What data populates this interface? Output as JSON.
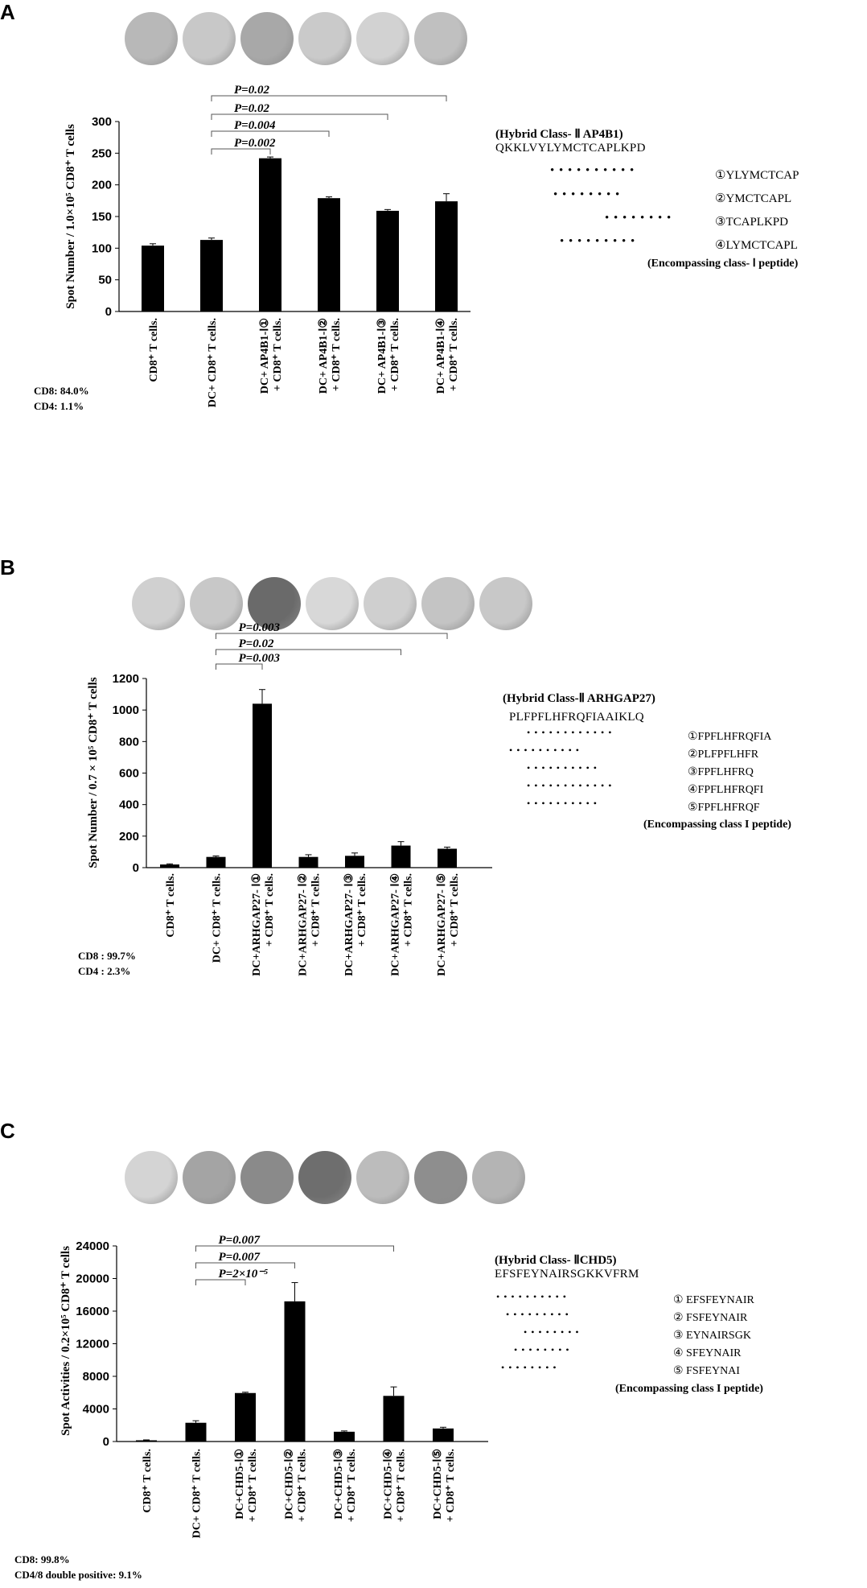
{
  "panels": [
    {
      "id": "a",
      "letter": "A",
      "stats": [
        "CD8: 84.0%",
        "CD4: 1.1%"
      ],
      "peptide": {
        "title": "(Hybrid Class- Ⅱ AP4B1)",
        "sequence": "QKKLVYLYMCTCAPLKPD",
        "dots": [
          "• • • • • • • • • •",
          "• • • • • • • •",
          "• • • • • • • •",
          "• • • • • • • • •"
        ],
        "fragments": [
          "①YLYMCTCAP",
          "②YMCTCAPL",
          "③TCAPLKPD",
          "④LYMCTCAPL"
        ],
        "caption": "(Encompassing class- Ⅰ peptide)"
      },
      "well_shades": [
        "#b8b8b8",
        "#c8c8c8",
        "#a8a8a8",
        "#cacaca",
        "#d2d2d2",
        "#c0c0c0"
      ],
      "chart_data": {
        "type": "bar",
        "ylabel": "Spot Number / 1.0×10⁵ CD8⁺ T cells",
        "ylim": [
          0,
          300
        ],
        "yticks": [
          0,
          50,
          100,
          150,
          200,
          250,
          300
        ],
        "categories": [
          [
            "CD8⁺ T cells."
          ],
          [
            "DC+ CD8⁺ T cells."
          ],
          [
            "DC+ AP4B1-Ⅰ①",
            "+ CD8⁺ T cells."
          ],
          [
            "DC+ AP4B1-Ⅰ②",
            "+ CD8⁺ T cells."
          ],
          [
            "DC+ AP4B1-Ⅰ③",
            "+ CD8⁺ T cells."
          ],
          [
            "DC+ AP4B1-Ⅰ④",
            "+ CD8⁺ T cells."
          ]
        ],
        "values": [
          104,
          113,
          242,
          179,
          159,
          174
        ],
        "errors": [
          3,
          3,
          2,
          2,
          2,
          12
        ],
        "significance": [
          {
            "label": "P=0.002",
            "from": 1,
            "to": 2
          },
          {
            "label": "P=0.004",
            "from": 1,
            "to": 3
          },
          {
            "label": "P=0.02",
            "from": 1,
            "to": 4
          },
          {
            "label": "P=0.02",
            "from": 1,
            "to": 5
          }
        ]
      }
    },
    {
      "id": "b",
      "letter": "B",
      "stats": [
        "CD8 : 99.7%",
        "CD4 : 2.3%"
      ],
      "peptide": {
        "title": "(Hybrid Class-Ⅱ ARHGAP27)",
        "sequence": "PLFPFLHFRQFIAAIKLQ",
        "dots": [
          "• • • • • • • • • • • •",
          "• • • • • • • • • •",
          "• • • • • • • • • •",
          "• • • • • • • • • • • •",
          "• • • • • • • • • •"
        ],
        "fragments": [
          "①FPFLHFRQFIA",
          "②PLFPFLHFR",
          "③FPFLHFRQ",
          "④FPFLHFRQFI",
          "⑤FPFLHFRQF"
        ],
        "caption": "(Encompassing class I peptide)"
      },
      "well_shades": [
        "#d0d0d0",
        "#c8c8c8",
        "#6a6a6a",
        "#d8d8d8",
        "#cfcfcf",
        "#c4c4c4",
        "#c8c8c8"
      ],
      "chart_data": {
        "type": "bar",
        "ylabel": "Spot Number / 0.7 × 10⁵ CD8⁺ T cells",
        "ylim": [
          0,
          1200
        ],
        "yticks": [
          0,
          200,
          400,
          600,
          800,
          1000,
          1200
        ],
        "categories": [
          [
            "CD8⁺ T cells."
          ],
          [
            "DC+ CD8⁺ T cells."
          ],
          [
            "DC+ARHGAP27- Ⅰ①",
            "+ CD8⁺ T cells."
          ],
          [
            "DC+ARHGAP27- Ⅰ②",
            "+ CD8⁺ T cells."
          ],
          [
            "DC+ARHGAP27- Ⅰ③",
            "+ CD8⁺ T cells."
          ],
          [
            "DC+ARHGAP27- Ⅰ④",
            "+ CD8⁺ T cells."
          ],
          [
            "DC+ARHGAP27- Ⅰ⑤",
            "+ CD8⁺ T cells."
          ]
        ],
        "values": [
          20,
          68,
          1040,
          68,
          75,
          140,
          120
        ],
        "errors": [
          4,
          6,
          90,
          14,
          18,
          25,
          10
        ],
        "significance": [
          {
            "label": "P=0.003",
            "from": 1,
            "to": 2
          },
          {
            "label": "P=0.02",
            "from": 1,
            "to": 5
          },
          {
            "label": "P=0.003",
            "from": 1,
            "to": 6
          }
        ]
      }
    },
    {
      "id": "c",
      "letter": "C",
      "stats": [
        "CD8: 99.8%",
        "CD4/8 double positive: 9.1%"
      ],
      "peptide": {
        "title": "(Hybrid Class- ⅡCHD5)",
        "sequence": "EFSFEYNAIRSGKKVFRM",
        "dots": [
          "• • • • • • • • • •",
          "• • • • • • • • •",
          "• • • • • • • •",
          "• • • • • • • •",
          "• • • • • • • •"
        ],
        "fragments": [
          "① EFSFEYNAIR",
          "② FSFEYNAIR",
          "③ EYNAIRSGK",
          "④ SFEYNAIR",
          "⑤ FSFEYNAI"
        ],
        "caption": "(Encompassing class I peptide)"
      },
      "well_shades": [
        "#d4d4d4",
        "#a4a4a4",
        "#8a8a8a",
        "#6e6e6e",
        "#bcbcbc",
        "#8e8e8e",
        "#b4b4b4"
      ],
      "chart_data": {
        "type": "bar",
        "ylabel": "Spot Activities / 0.2×10⁵ CD8⁺ T cells",
        "ylim": [
          0,
          24000
        ],
        "yticks": [
          0,
          4000,
          8000,
          12000,
          16000,
          20000,
          24000
        ],
        "categories": [
          [
            "CD8⁺ T cells."
          ],
          [
            "DC+ CD8⁺ T cells."
          ],
          [
            "DC+CHD5-Ⅰ①",
            "+ CD8⁺ T cells."
          ],
          [
            "DC+CHD5-Ⅰ②",
            "+ CD8⁺ T cells."
          ],
          [
            "DC+CHD5-Ⅰ③",
            "+ CD8⁺ T cells."
          ],
          [
            "DC+CHD5-Ⅰ④",
            "+ CD8⁺ T cells."
          ],
          [
            "DC+CHD5-Ⅰ⑤",
            "+ CD8⁺ T cells."
          ]
        ],
        "values": [
          150,
          2300,
          5950,
          17200,
          1200,
          5600,
          1600
        ],
        "errors": [
          50,
          250,
          100,
          2300,
          100,
          1100,
          150
        ],
        "significance": [
          {
            "label": "P=2×10⁻⁵",
            "from": 1,
            "to": 2
          },
          {
            "label": "P=0.007",
            "from": 1,
            "to": 3
          },
          {
            "label": "P=0.007",
            "from": 1,
            "to": 5
          }
        ]
      }
    }
  ]
}
